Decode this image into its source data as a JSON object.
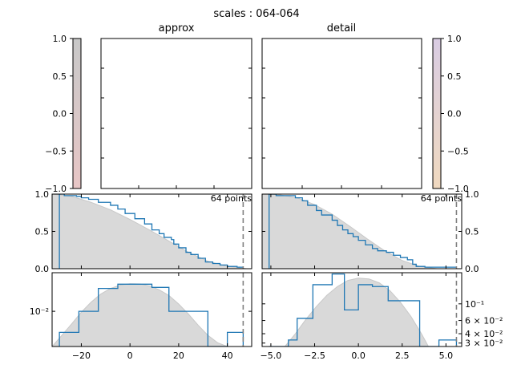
{
  "figure": {
    "suptitle": "scales : 064-064"
  },
  "colors": {
    "kde_fill": "#d9d9d9",
    "step": "#1f77b4",
    "vline": "#808080",
    "cbar_left_top": "#c8c8c8",
    "cbar_left_bottom": "#e8c6c6",
    "cbar_right_top": "#d9cce3",
    "cbar_right_bottom": "#f0d9bf"
  },
  "panels": [
    {
      "title": "approx",
      "image": {
        "empty": true
      },
      "colorbar": {
        "ticks": [
          "1.0",
          "0.5",
          "0.0",
          "−0.5",
          "−1.0"
        ],
        "values": [
          1.0,
          0.5,
          0.0,
          -0.5,
          -1.0
        ],
        "side": "left"
      },
      "annotation": "64 points"
    },
    {
      "title": "detail",
      "image": {
        "empty": true
      },
      "colorbar": {
        "ticks": [
          "1.0",
          "0.5",
          "0.0",
          "−0.5",
          "−1.0"
        ],
        "values": [
          1.0,
          0.5,
          0.0,
          -0.5,
          -1.0
        ],
        "side": "right"
      },
      "annotation": "64 points"
    }
  ],
  "chart_data": [
    {
      "type": "area",
      "panel": "approx",
      "plot": "cdf",
      "xlim": [
        -32,
        50
      ],
      "ylim": [
        0,
        1
      ],
      "yticks": [
        {
          "value": 0.0,
          "label": "0.0"
        },
        {
          "value": 0.5,
          "label": "0.5"
        },
        {
          "value": 1.0,
          "label": "1.0"
        }
      ],
      "vline_x": 46.5,
      "kde_curve": {
        "x": [
          -32,
          -24,
          -16,
          -8,
          0,
          8,
          16,
          24,
          32,
          40,
          48,
          50
        ],
        "y": [
          1.0,
          0.97,
          0.89,
          0.79,
          0.66,
          0.52,
          0.37,
          0.22,
          0.1,
          0.03,
          0.0,
          0.0
        ]
      },
      "step_series": {
        "x": [
          -29,
          -27,
          -22,
          -20,
          -17,
          -13,
          -8,
          -5,
          -2,
          2,
          6,
          9,
          12,
          14,
          17,
          18,
          20,
          23,
          25,
          28,
          31,
          34,
          37,
          40,
          44,
          46.5
        ],
        "y": [
          1.0,
          0.98,
          0.97,
          0.95,
          0.93,
          0.89,
          0.85,
          0.8,
          0.74,
          0.67,
          0.6,
          0.52,
          0.47,
          0.42,
          0.39,
          0.33,
          0.28,
          0.22,
          0.19,
          0.14,
          0.09,
          0.07,
          0.05,
          0.03,
          0.02,
          0.02
        ]
      }
    },
    {
      "type": "area",
      "panel": "detail",
      "plot": "cdf",
      "xlim": [
        -5.5,
        5.9
      ],
      "ylim": [
        0,
        1
      ],
      "yticks": [
        {
          "value": 0.0,
          "label": "0.0"
        },
        {
          "value": 0.5,
          "label": "0.5"
        },
        {
          "value": 1.0,
          "label": "1.0"
        }
      ],
      "vline_x": 5.6,
      "kde_curve": {
        "x": [
          -5.5,
          -4.5,
          -3.5,
          -2.5,
          -1.5,
          -0.5,
          0.5,
          1.5,
          2.5,
          3.5,
          4.5,
          5.9
        ],
        "y": [
          1.0,
          0.99,
          0.95,
          0.86,
          0.73,
          0.57,
          0.4,
          0.24,
          0.11,
          0.03,
          0.0,
          0.0
        ]
      },
      "step_series": {
        "x": [
          -5.1,
          -4.7,
          -3.6,
          -3.2,
          -2.9,
          -2.4,
          -2.1,
          -1.5,
          -1.2,
          -0.9,
          -0.6,
          -0.3,
          0.0,
          0.4,
          0.8,
          1.1,
          1.6,
          2.0,
          2.4,
          2.8,
          3.1,
          3.3,
          3.8,
          4.6,
          5.6
        ],
        "y": [
          1.0,
          0.98,
          0.95,
          0.91,
          0.85,
          0.78,
          0.72,
          0.65,
          0.58,
          0.52,
          0.47,
          0.43,
          0.38,
          0.32,
          0.27,
          0.24,
          0.22,
          0.18,
          0.15,
          0.12,
          0.06,
          0.03,
          0.02,
          0.02,
          0.02
        ]
      }
    },
    {
      "type": "area",
      "panel": "approx",
      "plot": "pdf",
      "xlim": [
        -32,
        50
      ],
      "yscale": "log",
      "ylim": [
        0.0045,
        0.024
      ],
      "yticks": [
        {
          "value": 0.01,
          "label": "10⁻²"
        }
      ],
      "xticks": [
        {
          "value": -20,
          "label": "−20"
        },
        {
          "value": 0,
          "label": "0"
        },
        {
          "value": 20,
          "label": "20"
        },
        {
          "value": 40,
          "label": "40"
        }
      ],
      "vline_x": 46.5,
      "kde_curve": {
        "x": [
          -32,
          -28,
          -24,
          -20,
          -16,
          -12,
          -8,
          -4,
          0,
          4,
          8,
          12,
          16,
          20,
          24,
          28,
          32,
          36,
          40,
          42
        ],
        "y": [
          0.0045,
          0.0058,
          0.0075,
          0.0098,
          0.0123,
          0.0148,
          0.0168,
          0.0181,
          0.0187,
          0.0186,
          0.0178,
          0.0163,
          0.0143,
          0.0118,
          0.0094,
          0.0073,
          0.0058,
          0.0049,
          0.0045,
          0.0045
        ]
      },
      "step_series": {
        "edges": [
          -29,
          -21,
          -13,
          -5,
          3,
          9,
          16,
          24,
          32,
          40,
          46.5
        ],
        "values": [
          0.0062,
          0.01,
          0.0168,
          0.0185,
          0.0185,
          0.0172,
          0.01,
          0.01,
          0.0045,
          0.0062
        ]
      }
    },
    {
      "type": "area",
      "panel": "detail",
      "plot": "pdf",
      "xlim": [
        -5.5,
        5.9
      ],
      "yscale": "log",
      "ylim": [
        0.027,
        0.26
      ],
      "yticks": [
        {
          "value": 0.1,
          "label": "10⁻¹"
        },
        {
          "value": 0.06,
          "label": "6 × 10⁻²"
        },
        {
          "value": 0.04,
          "label": "4 × 10⁻²"
        },
        {
          "value": 0.03,
          "label": "3 × 10⁻²"
        }
      ],
      "xticks": [
        {
          "value": -5,
          "label": "−5.0"
        },
        {
          "value": -2.5,
          "label": "−2.5"
        },
        {
          "value": 0,
          "label": "0.0"
        },
        {
          "value": 2.5,
          "label": "2.5"
        },
        {
          "value": 5,
          "label": "5.0"
        }
      ],
      "vline_x": 5.6,
      "kde_curve": {
        "x": [
          -4.2,
          -3.6,
          -3.0,
          -2.4,
          -1.8,
          -1.2,
          -0.6,
          0.0,
          0.6,
          1.2,
          1.8,
          2.4,
          3.0,
          3.6,
          4.0
        ],
        "y": [
          0.027,
          0.04,
          0.062,
          0.092,
          0.13,
          0.17,
          0.205,
          0.22,
          0.215,
          0.19,
          0.15,
          0.105,
          0.068,
          0.04,
          0.027
        ]
      },
      "step_series": {
        "edges": [
          -5.1,
          -4.0,
          -3.5,
          -2.6,
          -1.5,
          -0.8,
          0.0,
          0.8,
          1.7,
          2.5,
          3.5,
          4.6,
          5.6
        ],
        "values": [
          0.027,
          0.033,
          0.064,
          0.18,
          0.25,
          0.083,
          0.18,
          0.17,
          0.11,
          0.11,
          0.027,
          0.033
        ]
      }
    }
  ]
}
